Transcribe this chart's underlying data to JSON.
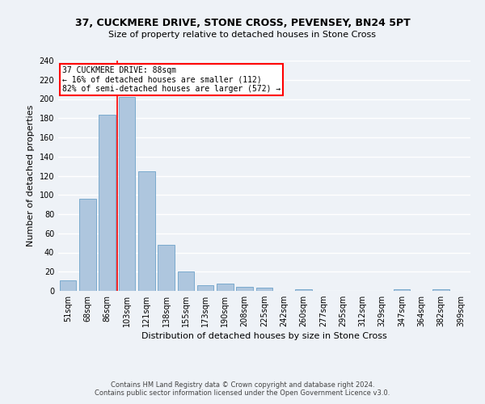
{
  "title": "37, CUCKMERE DRIVE, STONE CROSS, PEVENSEY, BN24 5PT",
  "subtitle": "Size of property relative to detached houses in Stone Cross",
  "xlabel": "Distribution of detached houses by size in Stone Cross",
  "ylabel": "Number of detached properties",
  "footer1": "Contains HM Land Registry data © Crown copyright and database right 2024.",
  "footer2": "Contains public sector information licensed under the Open Government Licence v3.0.",
  "bar_labels": [
    "51sqm",
    "68sqm",
    "86sqm",
    "103sqm",
    "121sqm",
    "138sqm",
    "155sqm",
    "173sqm",
    "190sqm",
    "208sqm",
    "225sqm",
    "242sqm",
    "260sqm",
    "277sqm",
    "295sqm",
    "312sqm",
    "329sqm",
    "347sqm",
    "364sqm",
    "382sqm",
    "399sqm"
  ],
  "bar_values": [
    11,
    96,
    184,
    202,
    125,
    48,
    20,
    6,
    8,
    4,
    3,
    0,
    2,
    0,
    0,
    0,
    0,
    2,
    0,
    2,
    0
  ],
  "bar_color": "#aec6de",
  "bar_edge_color": "#7aaace",
  "ylim": [
    0,
    240
  ],
  "yticks": [
    0,
    20,
    40,
    60,
    80,
    100,
    120,
    140,
    160,
    180,
    200,
    220,
    240
  ],
  "annotation_line1": "37 CUCKMERE DRIVE: 88sqm",
  "annotation_line2": "← 16% of detached houses are smaller (112)",
  "annotation_line3": "82% of semi-detached houses are larger (572) →",
  "annotation_box_color": "white",
  "annotation_box_edge_color": "red",
  "vline_x": 2.5,
  "bg_color": "#eef2f7",
  "grid_color": "white",
  "title_fontsize": 9,
  "subtitle_fontsize": 8,
  "ylabel_fontsize": 8,
  "xlabel_fontsize": 8,
  "tick_fontsize": 7,
  "footer_fontsize": 6
}
